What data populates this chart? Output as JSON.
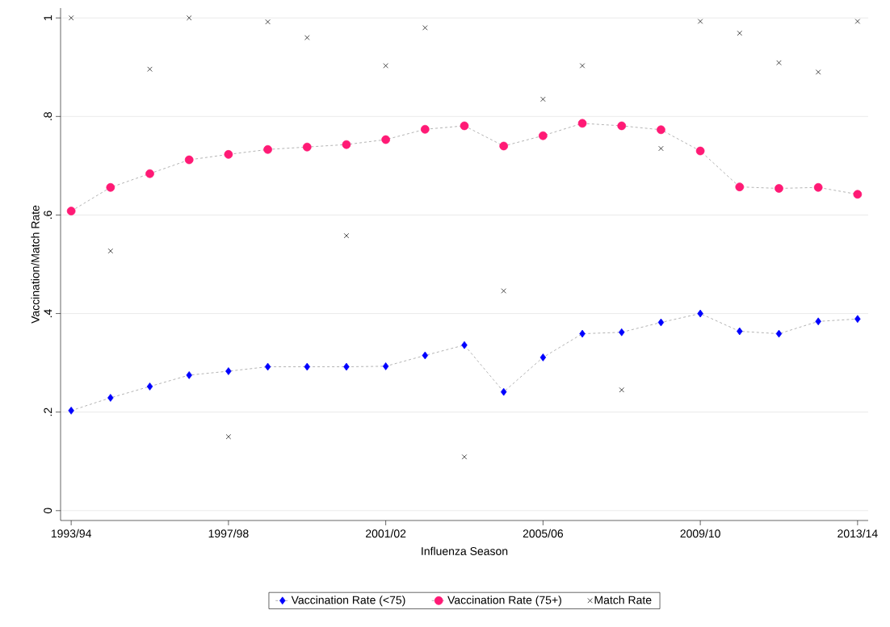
{
  "chart_data": {
    "type": "line",
    "xlabel": "Influenza Season",
    "ylabel": "Vaccination/Match Rate",
    "categories": [
      "1993/94",
      null,
      null,
      null,
      "1997/98",
      null,
      null,
      null,
      "2001/02",
      null,
      null,
      null,
      "2005/06",
      null,
      null,
      null,
      "2009/10",
      null,
      null,
      null,
      "2013/14"
    ],
    "series": [
      {
        "name": "Vaccination Rate (<75)",
        "color": "#0000ff",
        "marker": "diamond",
        "line_style": "dashed",
        "values": [
          0.203,
          0.229,
          0.252,
          0.275,
          0.283,
          0.292,
          0.292,
          0.292,
          0.293,
          0.315,
          0.336,
          0.241,
          0.311,
          0.359,
          0.362,
          0.382,
          0.4,
          0.364,
          0.359,
          0.384,
          0.389
        ]
      },
      {
        "name": "Vaccination Rate (75+)",
        "color": "#ff1a75",
        "marker": "circle",
        "line_style": "dashed",
        "values": [
          0.608,
          0.656,
          0.684,
          0.712,
          0.723,
          0.733,
          0.738,
          0.743,
          0.753,
          0.774,
          0.781,
          0.74,
          0.761,
          0.786,
          0.781,
          0.773,
          0.73,
          0.657,
          0.654,
          0.656,
          0.642
        ]
      },
      {
        "name": "Match Rate",
        "type": "scatter",
        "color": "#000000",
        "marker": "cross",
        "values": [
          1.0,
          0.527,
          0.896,
          1.0,
          0.15,
          0.992,
          0.96,
          0.558,
          0.903,
          0.98,
          0.109,
          0.446,
          0.835,
          0.903,
          0.245,
          0.735,
          0.993,
          0.969,
          0.909,
          0.89,
          0.993
        ]
      }
    ],
    "ylim": [
      -0.02,
      1.02
    ],
    "yticks": [
      0,
      {
        "value": 0.2,
        "label": ".2"
      },
      {
        "value": 0.4,
        "label": ".4"
      },
      {
        "value": 0.6,
        "label": ".6"
      },
      {
        "value": 0.8,
        "label": ".8"
      },
      1
    ],
    "grid": "y",
    "legend": "bottom"
  }
}
